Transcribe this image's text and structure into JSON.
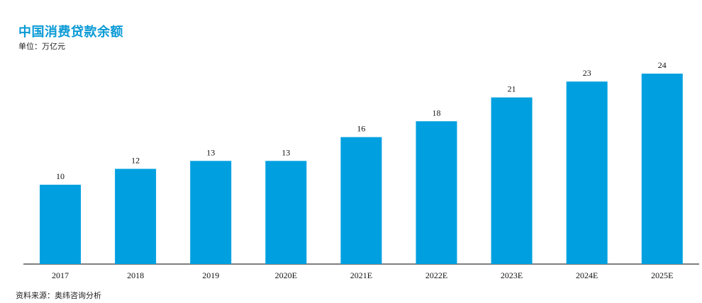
{
  "header": {
    "title": "中国消费贷款余额",
    "unit": "单位：万亿元"
  },
  "footer": {
    "source": "资料来源：奥纬咨询分析"
  },
  "colors": {
    "bar": "#00a0e0",
    "title": "#0a9ad6",
    "axis": "#333333"
  },
  "chart_data": {
    "type": "bar",
    "title": "中国消费贷款余额",
    "subtitle": "单位：万亿元",
    "categories": [
      "2017",
      "2018",
      "2019",
      "2020E",
      "2021E",
      "2022E",
      "2023E",
      "2024E",
      "2025E"
    ],
    "values": [
      10,
      12,
      13,
      13,
      16,
      18,
      21,
      23,
      24
    ],
    "xlabel": "",
    "ylabel": "",
    "ylim": [
      0,
      24
    ],
    "grid": false,
    "legend": "none",
    "data_labels": true
  }
}
